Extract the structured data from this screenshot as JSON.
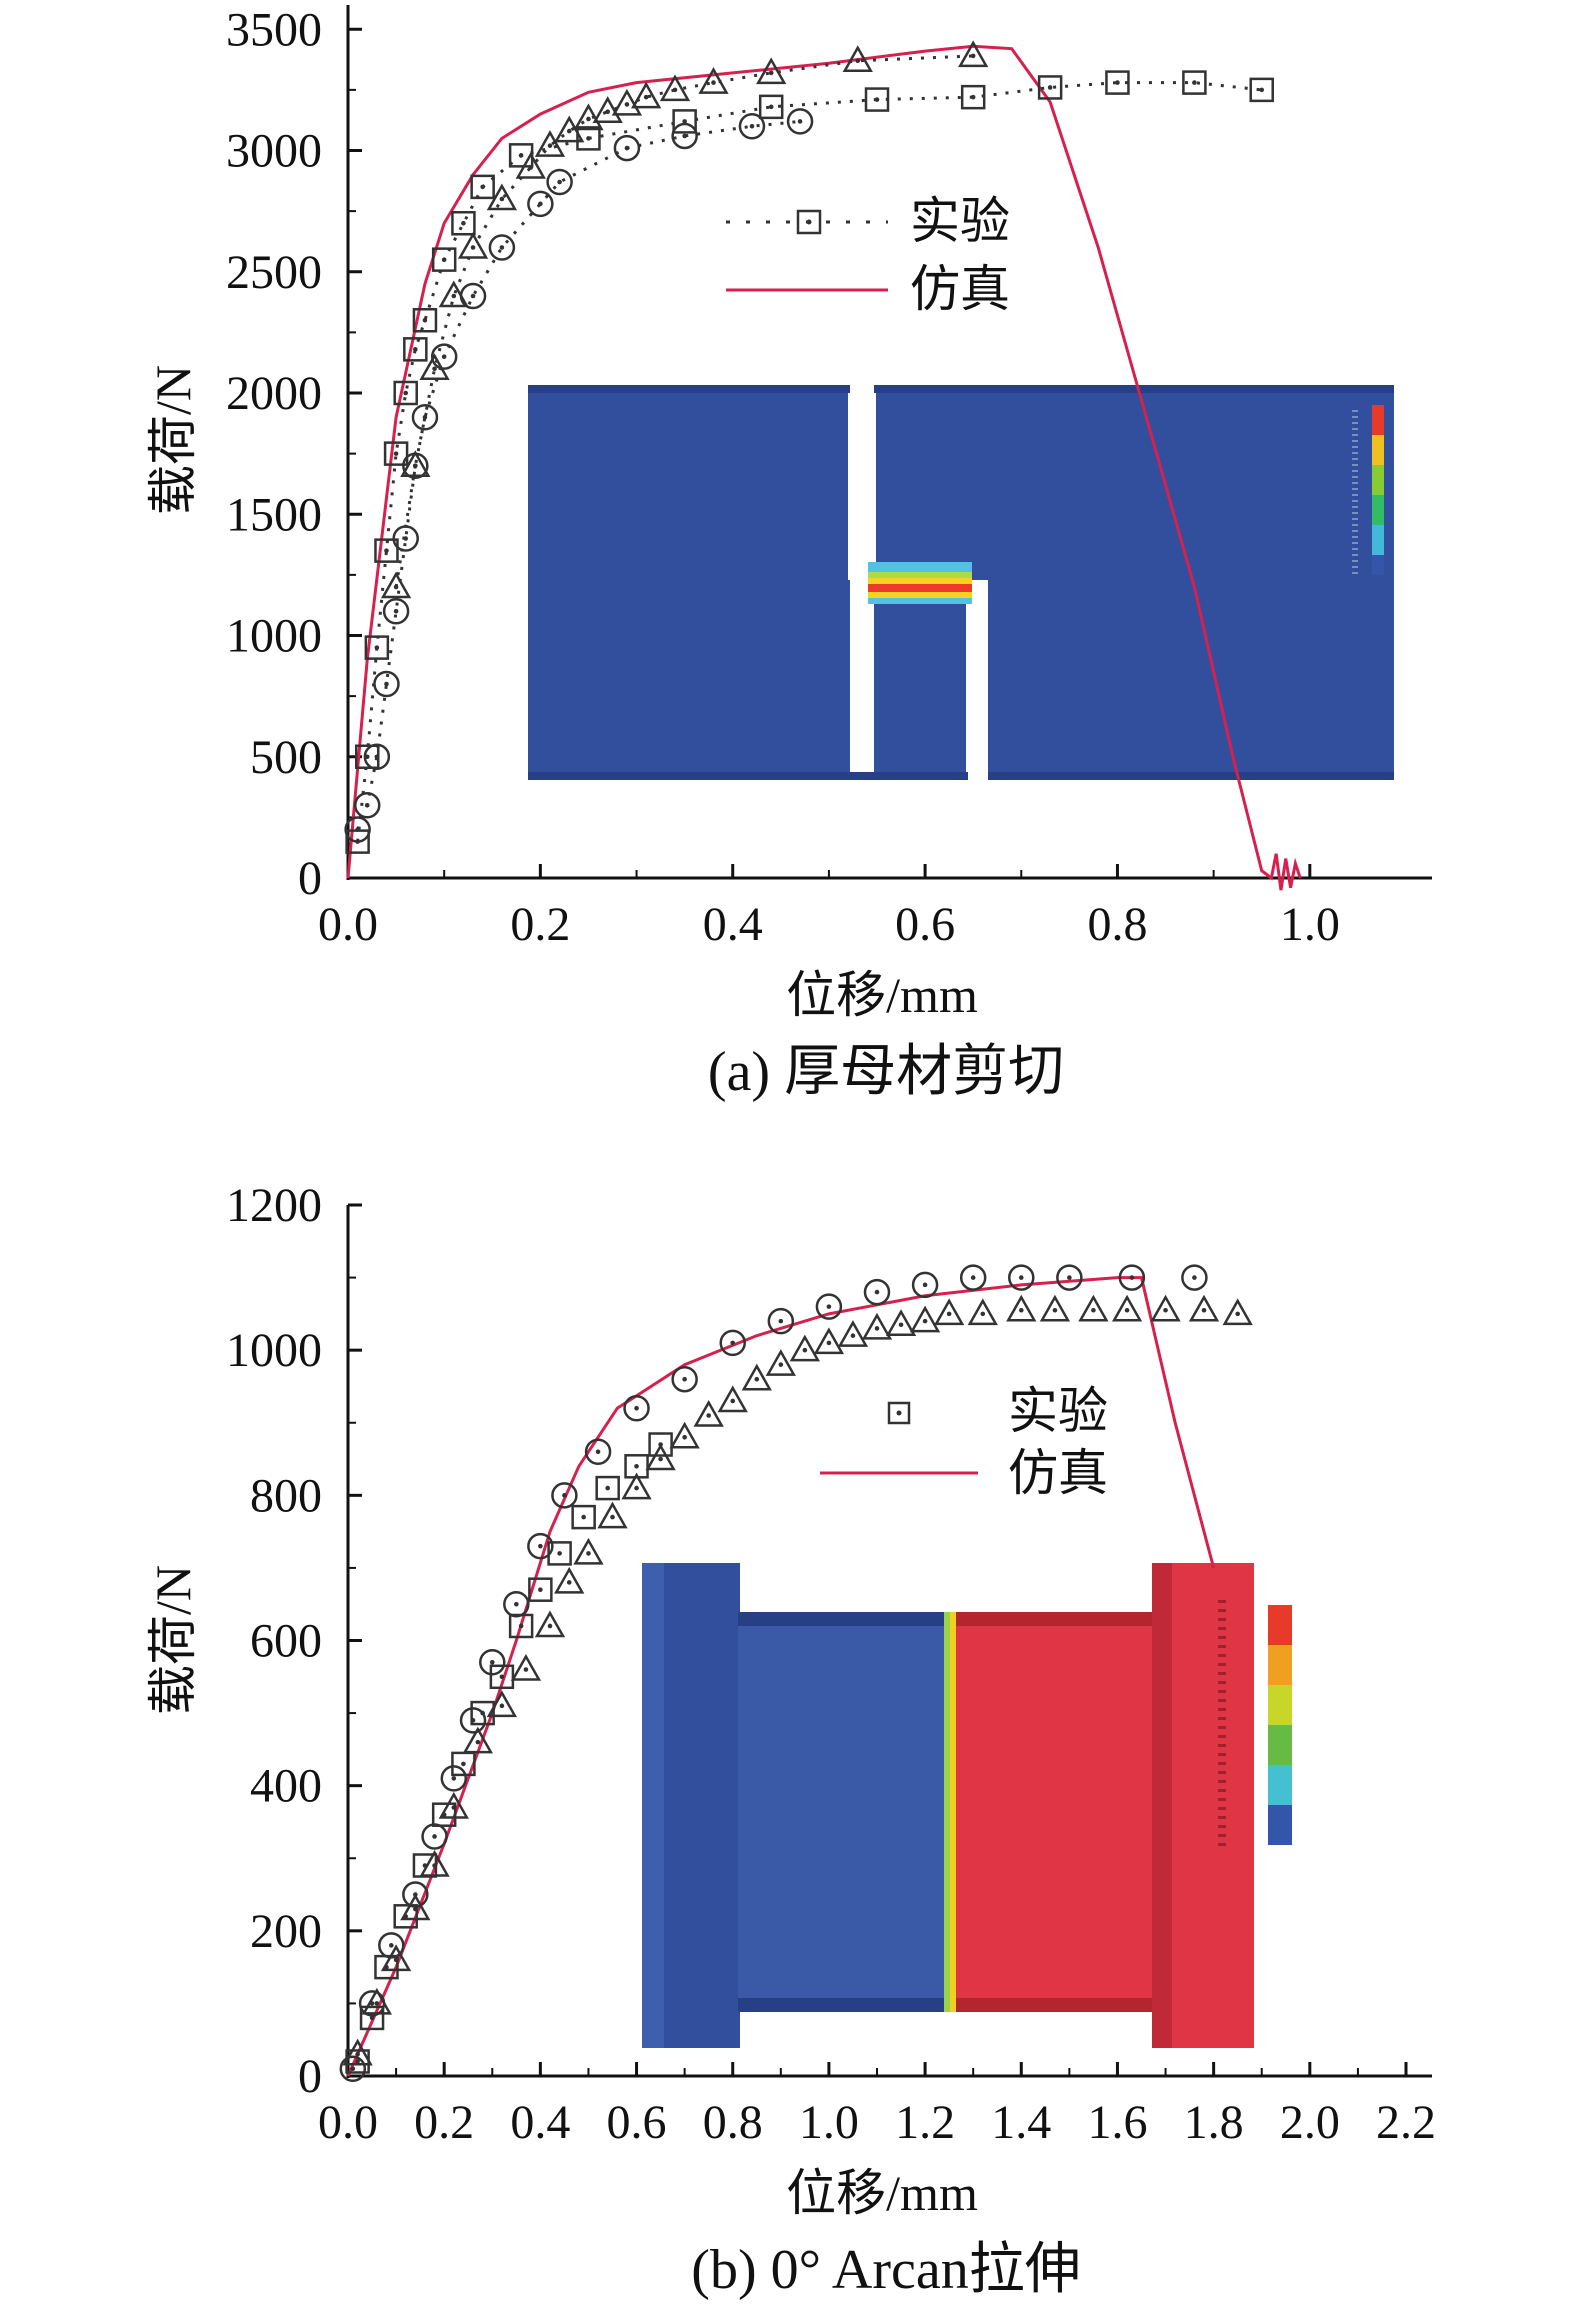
{
  "chart_data": [
    {
      "type": "line",
      "caption": "(a) 厚母材剪切",
      "xlabel": "位移/mm",
      "ylabel": "载荷/N",
      "xlim": [
        0,
        1.1
      ],
      "ylim": [
        0,
        3600
      ],
      "xticks": [
        "0.0",
        "0.2",
        "0.4",
        "0.6",
        "0.8",
        "1.0"
      ],
      "yticks": [
        "0",
        "500",
        "1000",
        "1500",
        "2000",
        "2500",
        "3000",
        "3500"
      ],
      "legend": {
        "position": "center-right",
        "entries": [
          "实验",
          "仿真"
        ]
      },
      "colors": {
        "simulation": "#d6204e",
        "experiment": "#333333",
        "markers_ramp": "#c07a2a"
      },
      "series": [
        {
          "name": "仿真",
          "style": "solid",
          "x": [
            0,
            0.02,
            0.05,
            0.08,
            0.1,
            0.13,
            0.16,
            0.2,
            0.25,
            0.3,
            0.4,
            0.5,
            0.6,
            0.65,
            0.69,
            0.73,
            0.78,
            0.83,
            0.88,
            0.92,
            0.95,
            0.96,
            0.965,
            0.97,
            0.975,
            0.98,
            0.985,
            0.99
          ],
          "y": [
            0,
            900,
            1900,
            2450,
            2700,
            2900,
            3050,
            3150,
            3240,
            3280,
            3320,
            3360,
            3410,
            3430,
            3420,
            3200,
            2600,
            1900,
            1200,
            500,
            30,
            0,
            100,
            -50,
            80,
            -40,
            60,
            0
          ]
        },
        {
          "name": "实验",
          "marker": "square",
          "x": [
            0.01,
            0.02,
            0.03,
            0.04,
            0.05,
            0.06,
            0.07,
            0.08,
            0.1,
            0.12,
            0.14,
            0.18,
            0.25,
            0.35,
            0.44,
            0.55,
            0.65,
            0.73,
            0.8,
            0.88,
            0.95
          ],
          "y": [
            150,
            500,
            950,
            1350,
            1750,
            2000,
            2180,
            2300,
            2550,
            2700,
            2850,
            2980,
            3050,
            3120,
            3180,
            3210,
            3220,
            3260,
            3280,
            3280,
            3250
          ]
        },
        {
          "name": "",
          "marker": "circle",
          "x": [
            0.01,
            0.02,
            0.03,
            0.04,
            0.05,
            0.06,
            0.07,
            0.08,
            0.1,
            0.13,
            0.16,
            0.2,
            0.22,
            0.29,
            0.35,
            0.42,
            0.47
          ],
          "y": [
            200,
            300,
            500,
            800,
            1100,
            1400,
            1700,
            1900,
            2150,
            2400,
            2600,
            2780,
            2870,
            3010,
            3060,
            3100,
            3120
          ]
        },
        {
          "name": "",
          "marker": "triangle",
          "x": [
            0.05,
            0.07,
            0.09,
            0.11,
            0.13,
            0.16,
            0.19,
            0.21,
            0.23,
            0.25,
            0.27,
            0.29,
            0.31,
            0.34,
            0.38,
            0.44,
            0.53,
            0.65
          ],
          "y": [
            1200,
            1700,
            2100,
            2400,
            2600,
            2800,
            2930,
            3020,
            3080,
            3130,
            3160,
            3190,
            3220,
            3250,
            3280,
            3320,
            3370,
            3390
          ]
        }
      ]
    },
    {
      "type": "line",
      "caption": "(b) 0° Arcan拉伸",
      "xlabel": "位移/mm",
      "ylabel": "载荷/N",
      "xlim": [
        0,
        2.2
      ],
      "ylim": [
        0,
        1200
      ],
      "xticks": [
        "0.0",
        "0.2",
        "0.4",
        "0.6",
        "0.8",
        "1.0",
        "1.2",
        "1.4",
        "1.6",
        "1.8",
        "2.0",
        "2.2"
      ],
      "yticks": [
        "0",
        "200",
        "400",
        "600",
        "800",
        "1000",
        "1200"
      ],
      "legend": {
        "position": "center-right",
        "entries": [
          "实验",
          "仿真"
        ]
      },
      "colors": {
        "simulation": "#d6204e",
        "experiment": "#333333"
      },
      "series": [
        {
          "name": "仿真",
          "style": "solid",
          "x": [
            0,
            0.1,
            0.2,
            0.3,
            0.35,
            0.42,
            0.48,
            0.56,
            0.7,
            0.85,
            1.0,
            1.2,
            1.4,
            1.6,
            1.65,
            1.72,
            1.8
          ],
          "y": [
            0,
            150,
            320,
            500,
            600,
            750,
            840,
            920,
            980,
            1020,
            1050,
            1075,
            1090,
            1100,
            1100,
            900,
            700
          ]
        },
        {
          "name": "实验",
          "marker": "square",
          "x": [
            0.02,
            0.05,
            0.08,
            0.12,
            0.16,
            0.2,
            0.24,
            0.28,
            0.32,
            0.36,
            0.4,
            0.44,
            0.49,
            0.54,
            0.6,
            0.65
          ],
          "y": [
            20,
            80,
            150,
            220,
            290,
            360,
            430,
            500,
            550,
            620,
            670,
            720,
            770,
            810,
            840,
            870
          ]
        },
        {
          "name": "",
          "marker": "circle",
          "x": [
            0.01,
            0.05,
            0.09,
            0.14,
            0.18,
            0.22,
            0.26,
            0.3,
            0.35,
            0.4,
            0.45,
            0.52,
            0.6,
            0.7,
            0.8,
            0.9,
            1.0,
            1.1,
            1.2,
            1.3,
            1.4,
            1.5,
            1.63,
            1.76
          ],
          "y": [
            10,
            100,
            180,
            250,
            330,
            410,
            490,
            570,
            650,
            730,
            800,
            860,
            920,
            960,
            1010,
            1040,
            1060,
            1080,
            1090,
            1100,
            1100,
            1100,
            1100,
            1100
          ]
        },
        {
          "name": "",
          "marker": "triangle",
          "x": [
            0.02,
            0.06,
            0.1,
            0.14,
            0.18,
            0.22,
            0.27,
            0.32,
            0.37,
            0.42,
            0.46,
            0.5,
            0.55,
            0.6,
            0.65,
            0.7,
            0.75,
            0.8,
            0.85,
            0.9,
            0.95,
            1.0,
            1.05,
            1.1,
            1.15,
            1.2,
            1.25,
            1.32,
            1.4,
            1.47,
            1.55,
            1.62,
            1.7,
            1.78,
            1.85
          ],
          "y": [
            30,
            100,
            160,
            230,
            290,
            370,
            460,
            510,
            560,
            620,
            680,
            720,
            770,
            810,
            850,
            880,
            910,
            930,
            960,
            980,
            1000,
            1010,
            1020,
            1030,
            1035,
            1040,
            1050,
            1050,
            1055,
            1055,
            1055,
            1055,
            1055,
            1055,
            1050
          ]
        }
      ]
    }
  ]
}
